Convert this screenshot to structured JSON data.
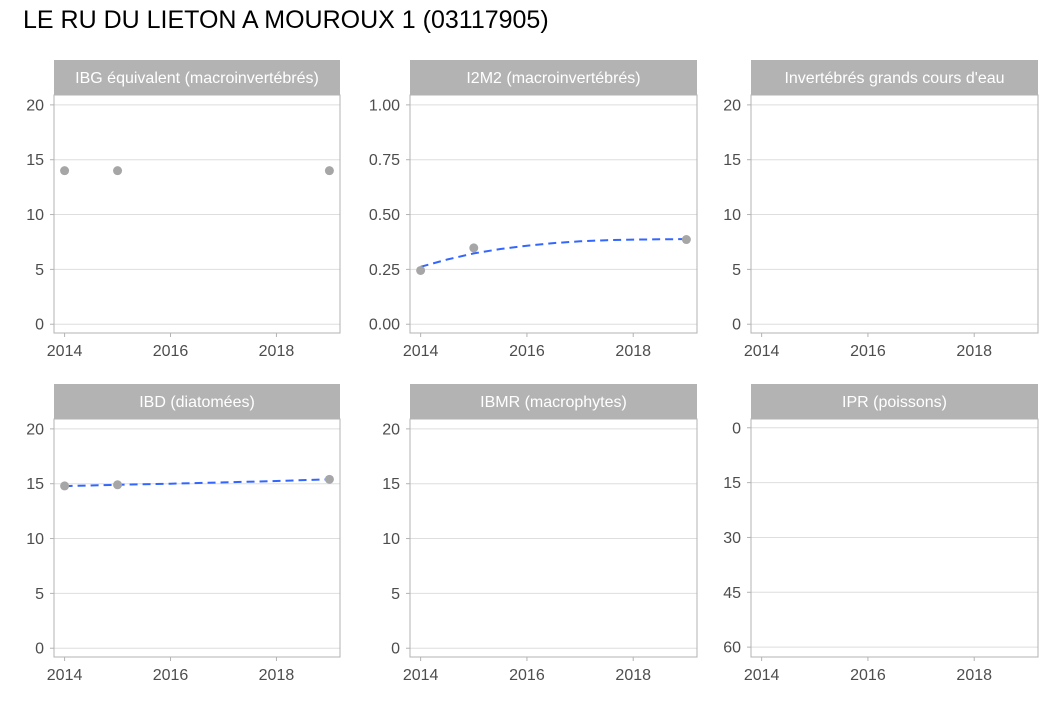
{
  "title": "LE RU DU LIETON A MOUROUX 1 (03117905)",
  "colors": {
    "strip": "#b3b3b3",
    "strip_text": "#ffffff",
    "panel_border": "#b3b3b3",
    "grid": "#dedede",
    "point": "#a6a6a6",
    "trend": "#3366ff",
    "tick_text": "#4d4d4d"
  },
  "chart_data": [
    {
      "type": "scatter",
      "title": "IBG équivalent (macroinvertébrés)",
      "x_ticks": [
        2014,
        2016,
        2018
      ],
      "y_ticks": [
        "0",
        "5",
        "10",
        "15",
        "20"
      ],
      "xlim": [
        2013.8,
        2019.2
      ],
      "ylim": [
        -0.8,
        20.9
      ],
      "y_reversed": false,
      "points": [
        {
          "x": 2014,
          "y": 14
        },
        {
          "x": 2015,
          "y": 14
        },
        {
          "x": 2019,
          "y": 14
        }
      ],
      "trend": []
    },
    {
      "type": "scatter",
      "title": "I2M2 (macroinvertébrés)",
      "x_ticks": [
        2014,
        2016,
        2018
      ],
      "y_ticks": [
        "0.00",
        "0.25",
        "0.50",
        "0.75",
        "1.00"
      ],
      "xlim": [
        2013.8,
        2019.2
      ],
      "ylim": [
        -0.04,
        1.045
      ],
      "y_reversed": false,
      "points": [
        {
          "x": 2014,
          "y": 0.245
        },
        {
          "x": 2015,
          "y": 0.348
        },
        {
          "x": 2019,
          "y": 0.386
        }
      ],
      "trend": [
        {
          "x": 2014,
          "y": 0.262
        },
        {
          "x": 2014.5,
          "y": 0.295
        },
        {
          "x": 2015,
          "y": 0.323
        },
        {
          "x": 2015.5,
          "y": 0.343
        },
        {
          "x": 2016,
          "y": 0.358
        },
        {
          "x": 2016.5,
          "y": 0.37
        },
        {
          "x": 2017,
          "y": 0.378
        },
        {
          "x": 2017.5,
          "y": 0.383
        },
        {
          "x": 2018,
          "y": 0.386
        },
        {
          "x": 2018.5,
          "y": 0.387
        },
        {
          "x": 2019,
          "y": 0.388
        }
      ]
    },
    {
      "type": "scatter",
      "title": "Invertébrés grands cours d'eau",
      "x_ticks": [
        2014,
        2016,
        2018
      ],
      "y_ticks": [
        "0",
        "5",
        "10",
        "15",
        "20"
      ],
      "xlim": [
        2013.8,
        2019.2
      ],
      "ylim": [
        -0.8,
        20.9
      ],
      "y_reversed": false,
      "points": [],
      "trend": []
    },
    {
      "type": "scatter",
      "title": "IBD (diatomées)",
      "x_ticks": [
        2014,
        2016,
        2018
      ],
      "y_ticks": [
        "0",
        "5",
        "10",
        "15",
        "20"
      ],
      "xlim": [
        2013.8,
        2019.2
      ],
      "ylim": [
        -0.8,
        20.9
      ],
      "y_reversed": false,
      "points": [
        {
          "x": 2014,
          "y": 14.8
        },
        {
          "x": 2015,
          "y": 14.9
        },
        {
          "x": 2019,
          "y": 15.4
        }
      ],
      "trend": [
        {
          "x": 2014,
          "y": 14.78
        },
        {
          "x": 2015,
          "y": 14.9
        },
        {
          "x": 2016,
          "y": 15.0
        },
        {
          "x": 2017,
          "y": 15.12
        },
        {
          "x": 2018,
          "y": 15.25
        },
        {
          "x": 2019,
          "y": 15.4
        }
      ]
    },
    {
      "type": "scatter",
      "title": "IBMR (macrophytes)",
      "x_ticks": [
        2014,
        2016,
        2018
      ],
      "y_ticks": [
        "0",
        "5",
        "10",
        "15",
        "20"
      ],
      "xlim": [
        2013.8,
        2019.2
      ],
      "ylim": [
        -0.8,
        20.9
      ],
      "y_reversed": false,
      "points": [],
      "trend": []
    },
    {
      "type": "scatter",
      "title": "IPR (poissons)",
      "x_ticks": [
        2014,
        2016,
        2018
      ],
      "y_ticks": [
        "0",
        "15",
        "30",
        "45",
        "60"
      ],
      "xlim": [
        2013.8,
        2019.2
      ],
      "ylim": [
        -2.4,
        62.7
      ],
      "y_reversed": true,
      "points": [],
      "trend": []
    }
  ]
}
